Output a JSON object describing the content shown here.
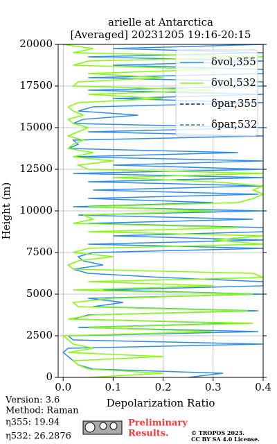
{
  "chart_data": {
    "type": "line",
    "title": "arielle at Antarctica",
    "subtitle": "[Averaged] 20231205 19:16-20:15",
    "x_label": "Depolarization Ratio",
    "y_label": "Height (m)",
    "heights": [
      0,
      250,
      500,
      750,
      1000,
      1250,
      1500,
      1750,
      2000,
      2250,
      2500,
      2750,
      3000,
      3250,
      3500,
      3750,
      4000,
      4250,
      4500,
      4750,
      5000,
      5250,
      5500,
      5750,
      6000,
      6250,
      6500,
      6750,
      7000,
      7250,
      7500,
      7750,
      8000,
      8250,
      8500,
      8750,
      9000,
      9250,
      9500,
      9750,
      10000,
      10250,
      10500,
      10750,
      11000,
      11250,
      11500,
      11750,
      12000,
      12250,
      12500,
      12750,
      13000,
      13250,
      13500,
      13750,
      14000,
      14250,
      14500,
      14750,
      15000,
      15250,
      15500,
      15750,
      16000,
      16250,
      16500,
      16750,
      17000,
      17250,
      17500,
      17750,
      18000,
      18250,
      18500,
      18750,
      19000,
      19250,
      19500,
      19750,
      20000
    ],
    "series": [
      {
        "name": "δvol,355",
        "color": "#2a8cf0",
        "linestyle": "solid",
        "values": [
          0.25,
          0.32,
          0.06,
          0.03,
          0.02,
          0.01,
          0.0,
          0.01,
          0.4,
          0.02,
          0.01,
          0.39,
          0.03,
          0.35,
          0.02,
          0.05,
          0.39,
          0.06,
          0.12,
          0.05,
          0.4,
          0.08,
          0.4,
          0.4,
          0.2,
          0.05,
          0.02,
          0.08,
          0.04,
          0.03,
          0.06,
          0.4,
          0.05,
          0.4,
          0.1,
          0.4,
          0.4,
          0.05,
          0.38,
          0.03,
          0.4,
          0.02,
          0.3,
          0.05,
          0.39,
          0.06,
          0.4,
          0.05,
          0.4,
          0.02,
          0.4,
          0.1,
          0.4,
          0.02,
          0.35,
          0.01,
          0.03,
          0.02,
          0.4,
          0.05,
          0.4,
          0.02,
          0.04,
          0.15,
          0.03,
          0.06,
          0.4,
          0.1,
          0.4,
          0.05,
          0.4,
          0.4,
          0.05,
          0.4,
          0.4,
          0.1,
          0.4,
          0.05,
          0.4,
          0.1,
          0.4
        ]
      },
      {
        "name": "δvol,532",
        "color": "#80ff00",
        "linestyle": "solid",
        "values": [
          0.05,
          0.2,
          0.05,
          0.03,
          0.02,
          0.2,
          0.01,
          0.06,
          0.02,
          0.01,
          0.0,
          0.3,
          0.05,
          0.38,
          0.01,
          0.06,
          0.37,
          0.03,
          0.02,
          0.1,
          0.38,
          0.02,
          0.3,
          0.05,
          0.4,
          0.38,
          0.02,
          0.01,
          0.03,
          0.1,
          0.02,
          0.05,
          0.4,
          0.3,
          0.4,
          0.05,
          0.35,
          0.02,
          0.06,
          0.04,
          0.3,
          0.05,
          0.35,
          0.38,
          0.4,
          0.38,
          0.4,
          0.3,
          0.1,
          0.4,
          0.05,
          0.03,
          0.1,
          0.02,
          0.06,
          0.01,
          0.02,
          0.04,
          0.01,
          0.03,
          0.05,
          0.02,
          0.01,
          0.04,
          0.02,
          0.01,
          0.03,
          0.2,
          0.05,
          0.3,
          0.02,
          0.03,
          0.2,
          0.05,
          0.3,
          0.02,
          0.05,
          0.4,
          0.02,
          0.06,
          0.0
        ]
      },
      {
        "name": "δpar,355",
        "color": "#1a1aa6",
        "linestyle": "dashed"
      },
      {
        "name": "δpar,532",
        "color": "#2e8b3e",
        "linestyle": "dashed"
      }
    ],
    "xlim": [
      -0.01,
      0.4
    ],
    "xticks": [
      {
        "value": 0,
        "label": "0.0"
      },
      0.1,
      0.2,
      0.3,
      0.4
    ],
    "ylim": [
      0,
      20000
    ],
    "yticks": [
      0,
      2500,
      5000,
      7500,
      10000,
      12500,
      15000,
      17500,
      20000
    ],
    "grid": true,
    "legend": "upper right"
  },
  "footer": {
    "version": "Version: 3.6",
    "method": "Method: Raman",
    "eta355": "η355:  19.94",
    "eta532": "η532: 26.2876",
    "notice": [
      "Preliminary",
      "Results."
    ],
    "copyright": "© TROPOS 2023.",
    "license": "CC BY SA 4.0 License."
  }
}
